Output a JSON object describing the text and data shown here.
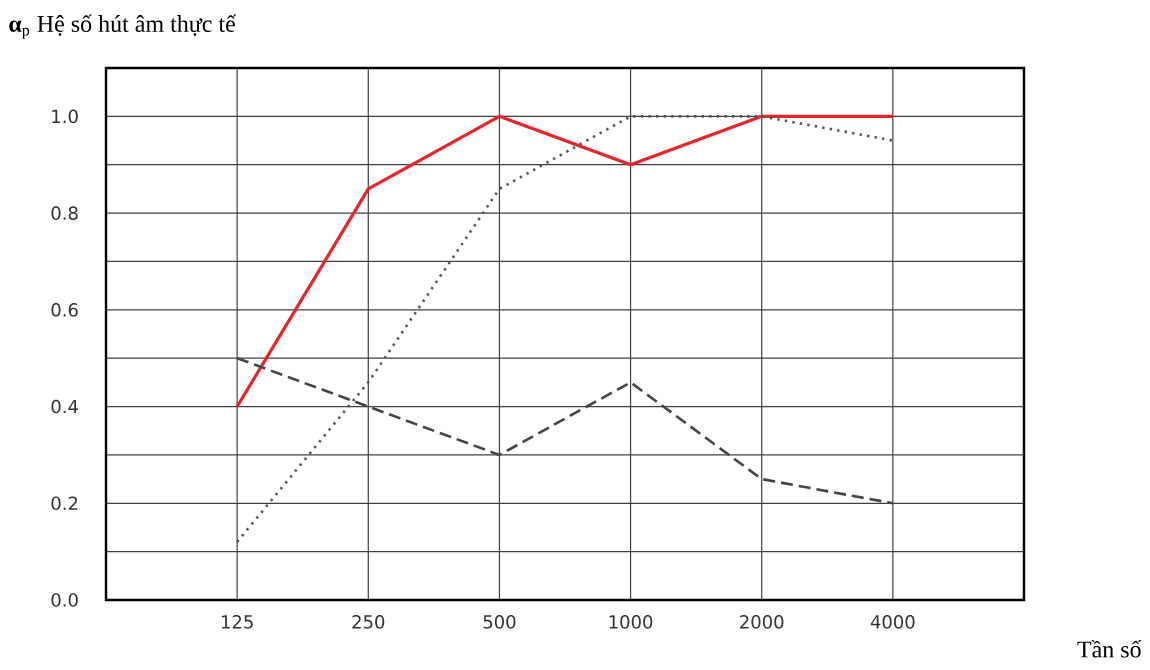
{
  "chart_data": {
    "type": "line",
    "title": "**α**$_{p}$ Hệ số hút âm thực tế",
    "xlabel": "Tần số",
    "categories": [
      "125",
      "250",
      "500",
      "1000",
      "2000",
      "4000"
    ],
    "series": [
      {
        "color": "#e8242a",
        "line_style": "solid",
        "values": [
          0.4,
          0.85,
          1.0,
          0.9,
          1.0,
          1.0
        ]
      },
      {
        "color": "#555555",
        "line_style": "dotted",
        "values": [
          0.12,
          0.45,
          0.85,
          1.0,
          1.0,
          0.95
        ]
      },
      {
        "color": "#444444",
        "line_style": "dashed",
        "values": [
          0.5,
          0.4,
          0.3,
          0.45,
          0.25,
          0.2
        ]
      }
    ],
    "ylim": [
      0,
      1.1
    ],
    "yticks": [
      {
        "value": 0,
        "label": "0.0"
      },
      {
        "value": 0.1,
        "label": null
      },
      0.2,
      {
        "value": 0.3,
        "label": null
      },
      0.4,
      {
        "value": 0.5,
        "label": null
      },
      0.6,
      {
        "value": 0.7,
        "label": null
      },
      0.8,
      {
        "value": 0.9,
        "label": null
      },
      {
        "value": 1,
        "label": "1.0"
      }
    ],
    "grid": true,
    "marker": "none"
  }
}
